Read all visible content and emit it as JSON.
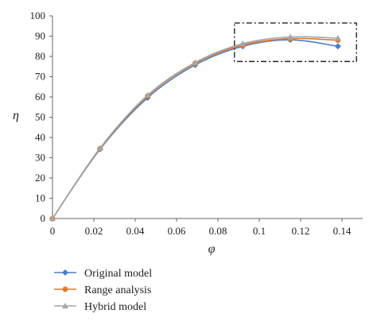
{
  "chart_data": {
    "type": "line",
    "xlabel": "φ",
    "ylabel": "η",
    "xlim": [
      0,
      0.15
    ],
    "ylim": [
      0,
      100
    ],
    "xticks": [
      0,
      0.02,
      0.04,
      0.06,
      0.08,
      0.1,
      0.12,
      0.14
    ],
    "yticks": [
      0,
      10,
      20,
      30,
      40,
      50,
      60,
      70,
      80,
      90,
      100
    ],
    "grid": false,
    "legend_position": "bottom-left",
    "x": [
      0,
      0.023,
      0.046,
      0.069,
      0.092,
      0.115,
      0.138
    ],
    "series": [
      {
        "name": "Original model",
        "color": "#4a7ec7",
        "marker": "diamond",
        "values": [
          0,
          34.2,
          59.6,
          75.8,
          85.0,
          88.2,
          85.0
        ]
      },
      {
        "name": "Range analysis",
        "color": "#e07a2e",
        "marker": "circle",
        "values": [
          0,
          34.5,
          60.5,
          76.6,
          85.6,
          88.8,
          88.0
        ]
      },
      {
        "name": "Hybrid model",
        "color": "#a6a6a6",
        "marker": "triangle",
        "values": [
          0,
          34.8,
          60.9,
          77.0,
          86.3,
          89.6,
          89.0
        ]
      }
    ],
    "annotations": [
      {
        "type": "dash-dot-box",
        "x_range": [
          0.088,
          0.147
        ],
        "y_range": [
          77.5,
          96.5
        ]
      }
    ]
  }
}
